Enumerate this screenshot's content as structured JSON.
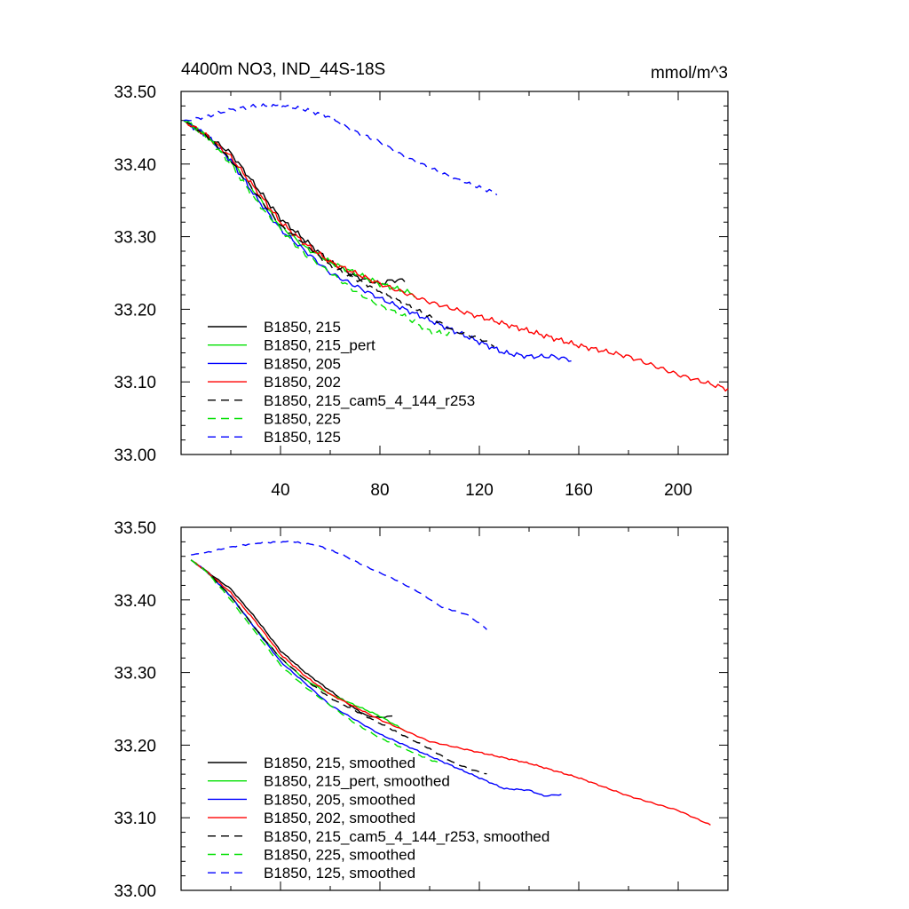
{
  "figure": {
    "title": "4400m NO3, IND_44S-18S",
    "units": "mmol/m^3"
  },
  "chart_data": [
    {
      "type": "line",
      "title": "4400m NO3, IND_44S-18S",
      "units_label": "mmol/m^3",
      "xlim": [
        0,
        220
      ],
      "ylim": [
        33.0,
        33.5
      ],
      "x_ticks": [
        40,
        80,
        120,
        160,
        200
      ],
      "x_tick_labels": [
        "40",
        "80",
        "120",
        "160",
        "200"
      ],
      "y_ticks": [
        33.0,
        33.1,
        33.2,
        33.3,
        33.4,
        33.5
      ],
      "y_tick_labels": [
        "33.00",
        "33.10",
        "33.20",
        "33.30",
        "33.40",
        "33.50"
      ],
      "grid": false,
      "legend_position": "bottom-left",
      "series": [
        {
          "name": "B1850, 215",
          "color": "#000000",
          "dash": "solid",
          "noise": 0.004,
          "x": [
            1,
            10,
            20,
            30,
            40,
            50,
            60,
            70,
            80,
            85,
            90
          ],
          "y": [
            33.46,
            33.44,
            33.415,
            33.37,
            33.325,
            33.295,
            33.265,
            33.245,
            33.235,
            33.24,
            33.24
          ]
        },
        {
          "name": "B1850, 215_pert",
          "color": "#00e000",
          "dash": "solid",
          "noise": 0.004,
          "x": [
            1,
            10,
            20,
            30,
            40,
            50,
            60,
            70,
            80,
            90,
            94
          ],
          "y": [
            33.46,
            33.44,
            33.405,
            33.36,
            33.315,
            33.285,
            33.265,
            33.25,
            33.235,
            33.225,
            33.22
          ]
        },
        {
          "name": "B1850, 205",
          "color": "#0000ff",
          "dash": "solid",
          "noise": 0.004,
          "x": [
            1,
            10,
            20,
            30,
            40,
            50,
            60,
            80,
            100,
            120,
            130,
            140,
            150,
            157
          ],
          "y": [
            33.46,
            33.44,
            33.405,
            33.355,
            33.31,
            33.28,
            33.25,
            33.215,
            33.185,
            33.155,
            33.14,
            33.135,
            33.135,
            33.13
          ]
        },
        {
          "name": "B1850, 202",
          "color": "#ff0000",
          "dash": "solid",
          "noise": 0.004,
          "x": [
            1,
            10,
            20,
            30,
            40,
            50,
            60,
            80,
            100,
            120,
            140,
            160,
            180,
            200,
            220
          ],
          "y": [
            33.46,
            33.44,
            33.41,
            33.365,
            33.32,
            33.29,
            33.265,
            33.235,
            33.21,
            33.19,
            33.17,
            33.15,
            33.135,
            33.11,
            33.09
          ]
        },
        {
          "name": "B1850, 215_cam5_4_144_r253",
          "color": "#000000",
          "dash": "dashed",
          "noise": 0.003,
          "x": [
            1,
            10,
            20,
            30,
            40,
            50,
            60,
            80,
            100,
            110,
            120,
            126
          ],
          "y": [
            33.46,
            33.44,
            33.405,
            33.36,
            33.315,
            33.29,
            33.26,
            33.225,
            33.19,
            33.17,
            33.16,
            33.15
          ]
        },
        {
          "name": "B1850, 225",
          "color": "#00e000",
          "dash": "dashed",
          "noise": 0.004,
          "x": [
            1,
            10,
            20,
            30,
            40,
            50,
            60,
            70,
            80,
            90,
            100,
            108
          ],
          "y": [
            33.46,
            33.44,
            33.4,
            33.35,
            33.31,
            33.275,
            33.25,
            33.225,
            33.205,
            33.19,
            33.17,
            33.165
          ]
        },
        {
          "name": "B1850, 125",
          "color": "#0000ff",
          "dash": "dashed",
          "noise": 0.003,
          "x": [
            1,
            10,
            20,
            30,
            40,
            50,
            60,
            70,
            80,
            90,
            100,
            110,
            118,
            127
          ],
          "y": [
            33.46,
            33.465,
            33.475,
            33.48,
            33.48,
            33.475,
            33.465,
            33.445,
            33.43,
            33.41,
            33.395,
            33.38,
            33.37,
            33.36
          ]
        }
      ]
    },
    {
      "type": "line",
      "xlim": [
        0,
        220
      ],
      "ylim": [
        33.0,
        33.5
      ],
      "x_ticks": [
        40,
        80,
        120,
        160,
        200
      ],
      "y_ticks": [
        33.0,
        33.1,
        33.2,
        33.3,
        33.4,
        33.5
      ],
      "y_tick_labels": [
        "33.00",
        "33.10",
        "33.20",
        "33.30",
        "33.40",
        "33.50"
      ],
      "grid": false,
      "legend_position": "bottom-left",
      "series": [
        {
          "name": "B1850, 215, smoothed",
          "color": "#000000",
          "dash": "solid",
          "noise": 0.001,
          "x": [
            4,
            10,
            20,
            30,
            40,
            50,
            60,
            70,
            75,
            80,
            85
          ],
          "y": [
            33.455,
            33.44,
            33.415,
            33.375,
            33.33,
            33.3,
            33.275,
            33.25,
            33.24,
            33.238,
            33.24
          ]
        },
        {
          "name": "B1850, 215_pert, smoothed",
          "color": "#00e000",
          "dash": "solid",
          "noise": 0.001,
          "x": [
            4,
            10,
            20,
            30,
            40,
            50,
            60,
            70,
            80,
            90
          ],
          "y": [
            33.455,
            33.44,
            33.405,
            33.36,
            33.32,
            33.29,
            33.27,
            33.255,
            33.24,
            33.22
          ]
        },
        {
          "name": "B1850, 205, smoothed",
          "color": "#0000ff",
          "dash": "solid",
          "noise": 0.001,
          "x": [
            4,
            10,
            20,
            30,
            40,
            50,
            60,
            80,
            100,
            120,
            130,
            140,
            146,
            153
          ],
          "y": [
            33.455,
            33.44,
            33.405,
            33.36,
            33.315,
            33.285,
            33.255,
            33.215,
            33.185,
            33.155,
            33.14,
            33.138,
            33.13,
            33.132
          ]
        },
        {
          "name": "B1850, 202, smoothed",
          "color": "#ff0000",
          "dash": "solid",
          "noise": 0.001,
          "x": [
            4,
            10,
            20,
            30,
            40,
            50,
            60,
            80,
            100,
            120,
            140,
            160,
            180,
            200,
            213
          ],
          "y": [
            33.455,
            33.44,
            33.41,
            33.37,
            33.325,
            33.295,
            33.27,
            33.235,
            33.205,
            33.19,
            33.175,
            33.155,
            33.13,
            33.11,
            33.09
          ]
        },
        {
          "name": "B1850, 215_cam5_4_144_r253, smoothed",
          "color": "#000000",
          "dash": "dashed",
          "noise": 0.001,
          "x": [
            4,
            10,
            20,
            30,
            40,
            50,
            60,
            80,
            100,
            110,
            118,
            123
          ],
          "y": [
            33.455,
            33.44,
            33.405,
            33.36,
            33.32,
            33.29,
            33.265,
            33.23,
            33.195,
            33.175,
            33.165,
            33.16
          ]
        },
        {
          "name": "B1850, 225, smoothed",
          "color": "#00e000",
          "dash": "dashed",
          "noise": 0.001,
          "x": [
            4,
            10,
            20,
            30,
            40,
            50,
            60,
            70,
            80,
            90,
            100,
            105
          ],
          "y": [
            33.455,
            33.44,
            33.4,
            33.355,
            33.31,
            33.28,
            33.255,
            33.23,
            33.21,
            33.195,
            33.18,
            33.175
          ]
        },
        {
          "name": "B1850, 125, smoothed",
          "color": "#0000ff",
          "dash": "dashed",
          "noise": 0.001,
          "x": [
            4,
            10,
            20,
            30,
            40,
            45,
            55,
            65,
            75,
            85,
            95,
            105,
            115,
            123
          ],
          "y": [
            33.462,
            33.465,
            33.473,
            33.478,
            33.48,
            33.48,
            33.475,
            33.462,
            33.445,
            33.43,
            33.412,
            33.39,
            33.38,
            33.36
          ]
        }
      ]
    }
  ]
}
